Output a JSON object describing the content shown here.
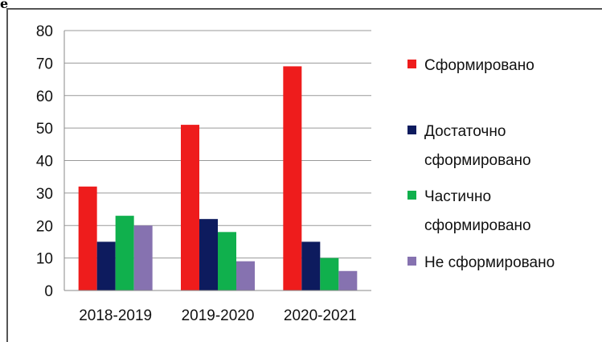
{
  "chart_data": {
    "type": "bar",
    "title": "",
    "xlabel": "",
    "ylabel": "",
    "ylim": [
      0,
      80
    ],
    "yticks": [
      0,
      10,
      20,
      30,
      40,
      50,
      60,
      70,
      80
    ],
    "grid": true,
    "legend_position": "right",
    "categories": [
      "2018-2019",
      "2019-2020",
      "2020-2021"
    ],
    "series": [
      {
        "name": "Сформировано",
        "color": "#ee1c1c",
        "values": [
          32,
          51,
          69
        ]
      },
      {
        "name": "Достаточно сформировано",
        "color": "#0d1b5e",
        "values": [
          15,
          22,
          15
        ]
      },
      {
        "name": "Частично сформировано",
        "color": "#10b04d",
        "values": [
          23,
          18,
          10
        ]
      },
      {
        "name": "Не сформировано",
        "color": "#8672b0",
        "values": [
          20,
          9,
          6
        ]
      }
    ],
    "legend_lines": [
      [
        "Сформировано"
      ],
      [
        "Достаточно",
        "сформировано"
      ],
      [
        "Частично",
        "сформировано"
      ],
      [
        "Не сформировано"
      ]
    ]
  }
}
